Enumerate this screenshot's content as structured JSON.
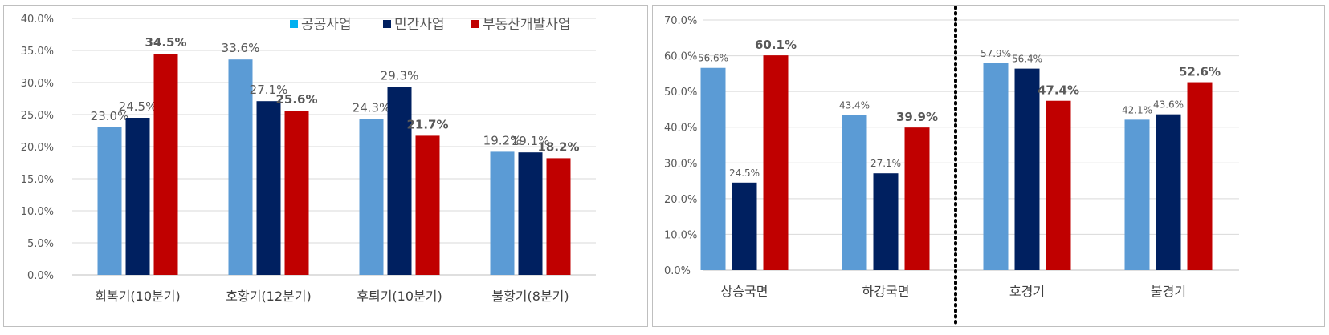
{
  "colors": {
    "public": "#5b9bd5",
    "private": "#002060",
    "realestate": "#c00000",
    "legend_public_marker": "#00b0f0",
    "grid": "#d9d9d9"
  },
  "legend": {
    "public": "공공사업",
    "private": "민간사업",
    "realestate": "부동산개발사업"
  },
  "chart_data": [
    {
      "type": "bar",
      "title": "",
      "xlabel": "",
      "ylabel": "",
      "ylim": [
        0,
        40
      ],
      "yticks": [
        "0.0%",
        "5.0%",
        "10.0%",
        "15.0%",
        "20.0%",
        "25.0%",
        "30.0%",
        "35.0%",
        "40.0%"
      ],
      "grid": true,
      "legend_position": "top-right",
      "categories": [
        "회복기(10분기)",
        "호황기(12분기)",
        "후퇴기(10분기)",
        "불황기(8분기)"
      ],
      "series": [
        {
          "name": "공공사업",
          "values": [
            23.0,
            33.6,
            24.3,
            19.2
          ],
          "labels": [
            "23.0%",
            "33.6%",
            "24.3%",
            "19.2%"
          ]
        },
        {
          "name": "민간사업",
          "values": [
            24.5,
            27.1,
            29.3,
            19.1
          ],
          "labels": [
            "24.5%",
            "27.1%",
            "29.3%",
            "19.1%"
          ]
        },
        {
          "name": "부동산개발사업",
          "values": [
            34.5,
            25.6,
            21.7,
            18.2
          ],
          "labels": [
            "34.5%",
            "25.6%",
            "21.7%",
            "18.2%"
          ]
        }
      ]
    },
    {
      "type": "bar",
      "title": "",
      "xlabel": "",
      "ylabel": "",
      "ylim": [
        0,
        70
      ],
      "yticks": [
        "0.0%",
        "10.0%",
        "20.0%",
        "30.0%",
        "40.0%",
        "50.0%",
        "60.0%",
        "70.0%"
      ],
      "grid": true,
      "divider": "dotted line between 하강국면 and 호경기",
      "categories": [
        "상승국면",
        "하강국면",
        "호경기",
        "불경기"
      ],
      "series": [
        {
          "name": "공공사업",
          "values": [
            56.6,
            43.4,
            57.9,
            42.1
          ],
          "labels": [
            "56.6%",
            "43.4%",
            "57.9%",
            "42.1%"
          ]
        },
        {
          "name": "민간사업",
          "values": [
            24.5,
            27.1,
            56.4,
            43.6
          ],
          "labels": [
            "24.5%",
            "27.1%",
            "56.4%",
            "43.6%"
          ]
        },
        {
          "name": "부동산개발사업",
          "values": [
            60.1,
            39.9,
            47.4,
            52.6
          ],
          "labels": [
            "60.1%",
            "39.9%",
            "47.4%",
            "52.6%"
          ]
        }
      ]
    }
  ]
}
